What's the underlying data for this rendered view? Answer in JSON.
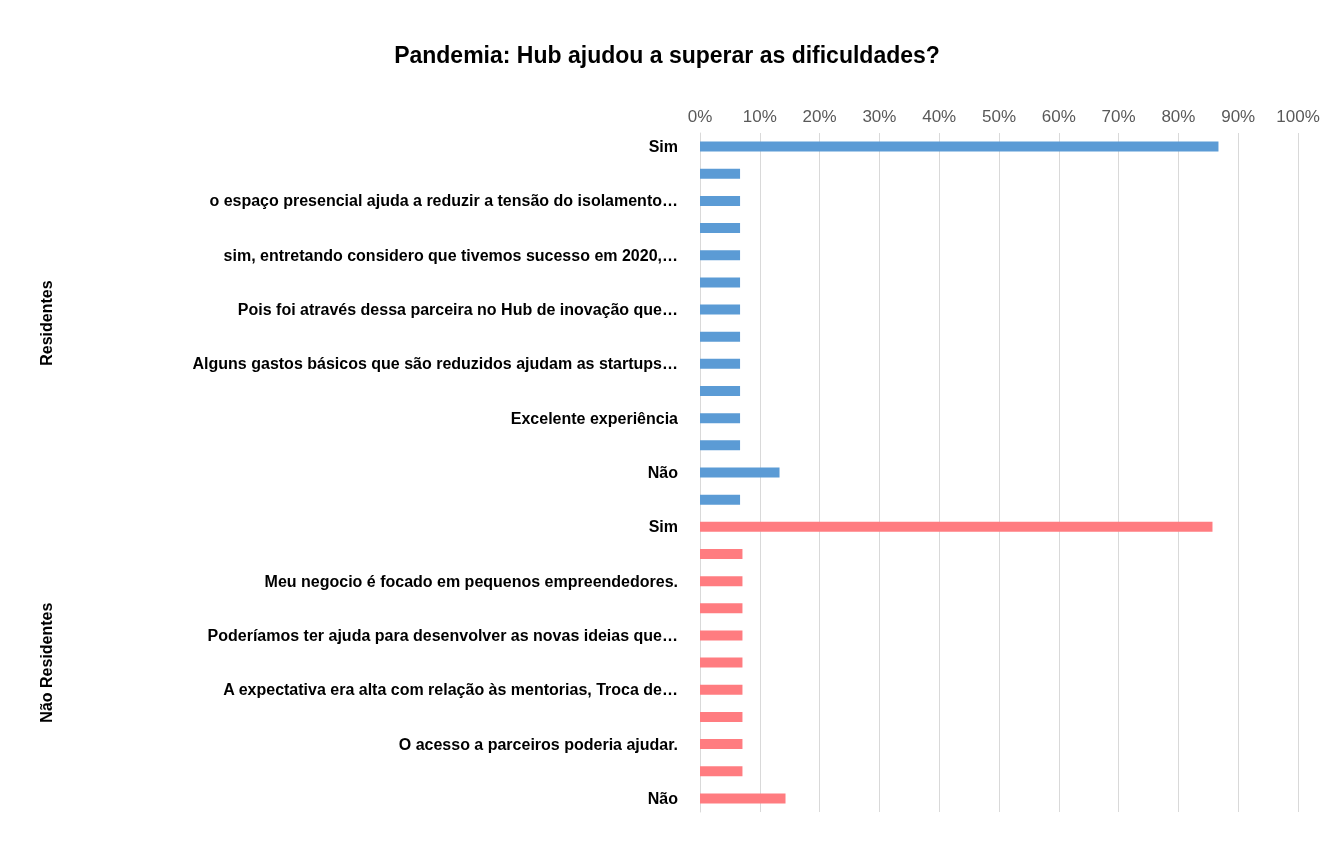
{
  "chart_data": {
    "type": "bar",
    "orientation": "horizontal",
    "title": "Pandemia: Hub ajudou a superar as dificuldades?",
    "categories": [
      "Sim",
      null,
      "o espaço presencial ajuda a reduzir a tensão do isolamento…",
      null,
      "sim, entretando considero que tivemos sucesso em 2020,…",
      null,
      "Pois foi através dessa parceira no Hub de inovação que…",
      null,
      "Alguns gastos básicos que são reduzidos ajudam as startups…",
      null,
      "Excelente experiência",
      null,
      "Não",
      null,
      "Sim",
      null,
      "Meu negocio é focado em pequenos empreendedores.",
      null,
      "Poderíamos ter ajuda para desenvolver as novas ideias que…",
      null,
      "A expectativa era alta com relação às mentorias, Troca de…",
      null,
      "O acesso a parceiros poderia ajudar.",
      null,
      "Não"
    ],
    "values": [
      86.7,
      6.7,
      6.7,
      6.7,
      6.7,
      6.7,
      6.7,
      6.7,
      6.7,
      6.7,
      6.7,
      6.7,
      13.3,
      6.7,
      85.7,
      7.1,
      7.1,
      7.1,
      7.1,
      7.1,
      7.1,
      7.1,
      7.1,
      7.1,
      14.3
    ],
    "colors": [
      "#5b9bd5",
      "#5b9bd5",
      "#5b9bd5",
      "#5b9bd5",
      "#5b9bd5",
      "#5b9bd5",
      "#5b9bd5",
      "#5b9bd5",
      "#5b9bd5",
      "#5b9bd5",
      "#5b9bd5",
      "#5b9bd5",
      "#5b9bd5",
      "#5b9bd5",
      "#ff7c80",
      "#ff7c80",
      "#ff7c80",
      "#ff7c80",
      "#ff7c80",
      "#ff7c80",
      "#ff7c80",
      "#ff7c80",
      "#ff7c80",
      "#ff7c80",
      "#ff7c80"
    ],
    "annotations": [
      "Residentes",
      "Não Residentes"
    ],
    "xlim": [
      0,
      100
    ],
    "xticks": [
      {
        "value": 0,
        "label": "0%"
      },
      {
        "value": 10,
        "label": "10%"
      },
      {
        "value": 20,
        "label": "20%"
      },
      {
        "value": 30,
        "label": "30%"
      },
      {
        "value": 40,
        "label": "40%"
      },
      {
        "value": 50,
        "label": "50%"
      },
      {
        "value": 60,
        "label": "60%"
      },
      {
        "value": 70,
        "label": "70%"
      },
      {
        "value": 80,
        "label": "80%"
      },
      {
        "value": 90,
        "label": "90%"
      },
      {
        "value": 100,
        "label": "100%"
      }
    ],
    "grid": true
  }
}
